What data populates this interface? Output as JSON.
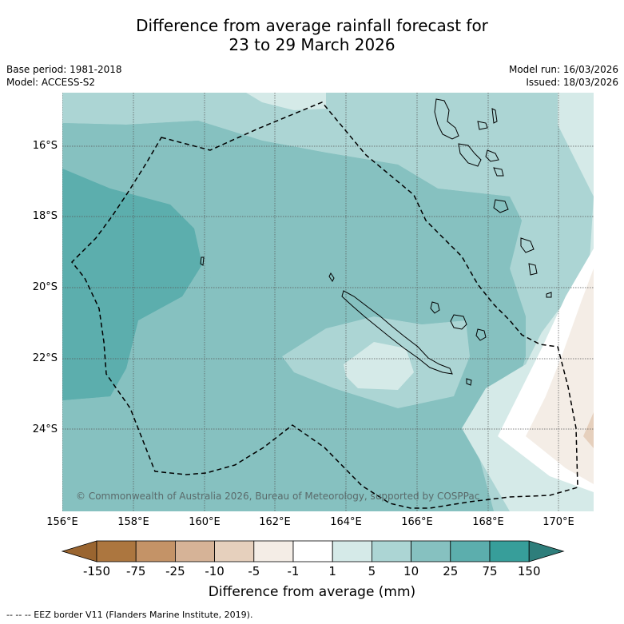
{
  "title_line1": "Difference from average rainfall forecast for",
  "title_line2": "23 to 29 March 2026",
  "base_period": "Base period: 1981-2018",
  "model": "Model: ACCESS-S2",
  "model_run": "Model run: 16/03/2026",
  "issued": "Issued: 18/03/2026",
  "latitude_labels": [
    "16°S",
    "18°S",
    "20°S",
    "22°S",
    "24°S"
  ],
  "longitude_labels": [
    "156°E",
    "158°E",
    "160°E",
    "162°E",
    "164°E",
    "166°E",
    "168°E",
    "170°E"
  ],
  "copyright": "© Commonwealth of Australia 2026, Bureau of Meteorology, supported by COSPPac",
  "colorbar": {
    "labels": [
      "-150",
      "-75",
      "-25",
      "-10",
      "-5",
      "-1",
      "1",
      "5",
      "10",
      "25",
      "75",
      "150"
    ],
    "colors": [
      "#9a6530",
      "#ac763f",
      "#c49367",
      "#d6b397",
      "#e6d0bd",
      "#f4ede6",
      "#ffffff",
      "#d5eae8",
      "#acd5d4",
      "#86c1c0",
      "#5caead",
      "#379e9a",
      "#2e7e7b"
    ],
    "title": "Difference from average (mm)"
  },
  "footer": "--  --  -- EEZ border V11 (Flanders Marine Institute, 2019)."
}
